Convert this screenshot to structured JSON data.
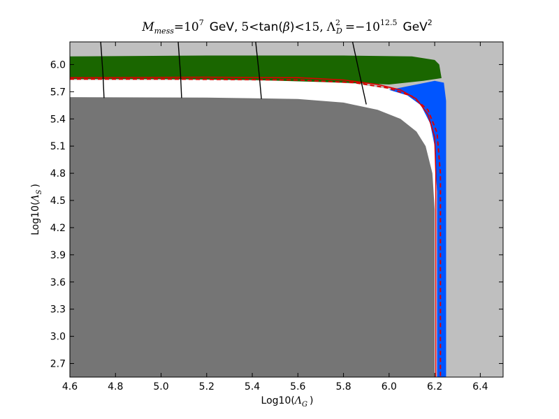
{
  "chart_data": {
    "type": "area",
    "title": {
      "m_symbol": "M",
      "m_subscript": "mess",
      "equals": "=",
      "m_base": "10",
      "m_exponent": "7",
      "gev": "GeV,",
      "tan_lower": "5",
      "less1": "<",
      "tan_text": "tan(",
      "beta": "β",
      "tan_close": ")",
      "less2": "<",
      "tan_upper": "15,",
      "lambda": "Λ",
      "lambda_sup": "2",
      "lambda_sub": "D",
      "equals2": "=",
      "lambda_base": "−10",
      "lambda_exponent": "12.5",
      "gev2": "GeV",
      "gev2_sup": "2"
    },
    "xlabel": {
      "prefix": "Log10(",
      "symbol": "Λ",
      "subscript": "G",
      "suffix": ")"
    },
    "ylabel": {
      "prefix": "Log10(",
      "symbol": "Λ",
      "subscript": "S",
      "suffix": ")"
    },
    "xlim": [
      4.6,
      6.5
    ],
    "ylim": [
      2.55,
      6.25
    ],
    "xticks": [
      "4.6",
      "4.8",
      "5.0",
      "5.2",
      "5.4",
      "5.6",
      "5.8",
      "6.0",
      "6.2",
      "6.4"
    ],
    "yticks": [
      "2.7",
      "3.0",
      "3.3",
      "3.6",
      "3.9",
      "4.2",
      "4.5",
      "4.8",
      "5.1",
      "5.4",
      "5.7",
      "6.0"
    ],
    "grid": false,
    "colors": {
      "background_region": "#bfbfbf",
      "allowed_white": "#ffffff",
      "excluded_dark": "#757575",
      "green_region": "#1a6600",
      "blue_region": "#0055ff",
      "red_contour": "#dd0000",
      "black_contour": "#000000"
    },
    "regions": {
      "dark_gray_boundary": [
        [
          4.6,
          5.64
        ],
        [
          5.2,
          5.635
        ],
        [
          5.6,
          5.62
        ],
        [
          5.8,
          5.58
        ],
        [
          5.95,
          5.5
        ],
        [
          6.05,
          5.4
        ],
        [
          6.12,
          5.26
        ],
        [
          6.16,
          5.1
        ],
        [
          6.19,
          4.8
        ],
        [
          6.2,
          4.4
        ],
        [
          6.2,
          2.55
        ]
      ],
      "white_outer_boundary": [
        [
          4.6,
          5.83
        ],
        [
          5.2,
          5.83
        ],
        [
          5.6,
          5.82
        ],
        [
          5.85,
          5.79
        ],
        [
          6.0,
          5.73
        ],
        [
          6.08,
          5.66
        ],
        [
          6.14,
          5.55
        ],
        [
          6.18,
          5.35
        ],
        [
          6.2,
          5.1
        ],
        [
          6.21,
          4.6
        ],
        [
          6.21,
          2.55
        ]
      ],
      "green_band": {
        "top": [
          [
            4.6,
            6.09
          ],
          [
            5.2,
            6.1
          ],
          [
            5.8,
            6.1
          ],
          [
            6.1,
            6.09
          ],
          [
            6.2,
            6.05
          ],
          [
            6.22,
            6.0
          ],
          [
            6.23,
            5.85
          ]
        ],
        "bottom": [
          [
            6.23,
            5.85
          ],
          [
            6.15,
            5.82
          ],
          [
            6.0,
            5.78
          ],
          [
            5.8,
            5.8
          ],
          [
            5.4,
            5.83
          ],
          [
            5.0,
            5.84
          ],
          [
            4.6,
            5.84
          ]
        ]
      },
      "blue_band": {
        "outer": [
          [
            6.0,
            5.72
          ],
          [
            6.12,
            5.78
          ],
          [
            6.2,
            5.82
          ],
          [
            6.24,
            5.8
          ],
          [
            6.25,
            5.6
          ],
          [
            6.25,
            2.55
          ]
        ],
        "inner": [
          [
            6.21,
            2.55
          ],
          [
            6.21,
            4.6
          ],
          [
            6.2,
            5.1
          ],
          [
            6.18,
            5.35
          ],
          [
            6.14,
            5.55
          ],
          [
            6.08,
            5.66
          ],
          [
            6.0,
            5.72
          ]
        ]
      },
      "red_contour": [
        [
          4.6,
          5.855
        ],
        [
          5.2,
          5.86
        ],
        [
          5.6,
          5.855
        ],
        [
          5.8,
          5.83
        ],
        [
          5.95,
          5.78
        ],
        [
          6.05,
          5.72
        ],
        [
          6.12,
          5.62
        ],
        [
          6.17,
          5.45
        ],
        [
          6.2,
          5.2
        ],
        [
          6.205,
          4.8
        ],
        [
          6.205,
          2.55
        ]
      ],
      "red_dashed": [
        [
          4.6,
          5.84
        ],
        [
          5.0,
          5.84
        ],
        [
          5.6,
          5.83
        ],
        [
          5.85,
          5.8
        ],
        [
          6.0,
          5.74
        ],
        [
          6.1,
          5.65
        ],
        [
          6.17,
          5.5
        ],
        [
          6.21,
          5.25
        ],
        [
          6.225,
          4.8
        ],
        [
          6.225,
          2.55
        ]
      ],
      "black_contours": [
        [
          [
            4.735,
            6.25
          ],
          [
            4.745,
            5.9
          ],
          [
            4.75,
            5.63
          ]
        ],
        [
          [
            5.075,
            6.25
          ],
          [
            5.085,
            5.9
          ],
          [
            5.09,
            5.63
          ]
        ],
        [
          [
            5.415,
            6.25
          ],
          [
            5.43,
            5.9
          ],
          [
            5.44,
            5.62
          ]
        ],
        [
          [
            5.84,
            6.25
          ],
          [
            5.87,
            5.9
          ],
          [
            5.9,
            5.56
          ]
        ]
      ]
    }
  }
}
